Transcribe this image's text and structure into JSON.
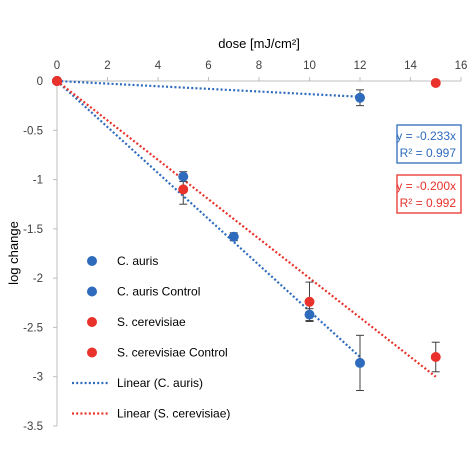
{
  "chart_data": {
    "type": "scatter",
    "xlabel": "dose [mJ/cm²]",
    "ylabel": "log change",
    "xlim": [
      0,
      16
    ],
    "ylim": [
      -3.5,
      0
    ],
    "x_ticks": [
      0,
      2,
      4,
      6,
      8,
      10,
      12,
      14,
      16
    ],
    "y_ticks": [
      0,
      -0.5,
      -1,
      -1.5,
      -2,
      -2.5,
      -3,
      -3.5
    ],
    "x_tick_labels": [
      "0",
      "2",
      "4",
      "6",
      "8",
      "10",
      "12",
      "14",
      "16"
    ],
    "y_tick_labels": [
      "0",
      "-0.5",
      "-1",
      "-1.5",
      "-2",
      "-2.5",
      "-3",
      "-3.5"
    ],
    "x_axis_position": "top",
    "grid": false,
    "series": [
      {
        "name": "C. auris",
        "color": "#2e6bbd",
        "points": [
          {
            "x": 0,
            "y": 0,
            "err": 0
          },
          {
            "x": 5,
            "y": -0.97,
            "err": 0.05
          },
          {
            "x": 7,
            "y": -1.58,
            "err": 0.04
          },
          {
            "x": 10,
            "y": -2.37,
            "err": 0.06
          },
          {
            "x": 12,
            "y": -2.86,
            "err": 0.28
          }
        ]
      },
      {
        "name": "C. auris Control",
        "color": "#2e6bbd",
        "points": [
          {
            "x": 0,
            "y": 0,
            "err": 0
          },
          {
            "x": 12,
            "y": -0.17,
            "err": 0.08
          }
        ]
      },
      {
        "name": "S. cerevisiae",
        "color": "#e8322b",
        "points": [
          {
            "x": 0,
            "y": 0,
            "err": 0
          },
          {
            "x": 5,
            "y": -1.1,
            "err": 0.15
          },
          {
            "x": 10,
            "y": -2.24,
            "err": 0.2
          },
          {
            "x": 15,
            "y": -2.8,
            "err": 0.15
          }
        ]
      },
      {
        "name": "S. cerevisiae Control",
        "color": "#e8322b",
        "points": [
          {
            "x": 0,
            "y": 0,
            "err": 0
          },
          {
            "x": 15,
            "y": -0.02,
            "err": 0
          }
        ]
      }
    ],
    "trendlines": [
      {
        "name": "Linear (C. auris)",
        "color": "#2e6bbd",
        "x": [
          0,
          12
        ],
        "y": [
          0,
          -2.8
        ]
      },
      {
        "name": "Linear (S. cerevisiae)",
        "color": "#e8322b",
        "x": [
          0,
          15
        ],
        "y": [
          0,
          -3.0
        ]
      },
      {
        "color": "#2e6bbd",
        "x": [
          0,
          12
        ],
        "y": [
          0,
          -0.16
        ]
      }
    ],
    "annotations": [
      {
        "lines": [
          "y = -0.233x",
          "R² = 0.997"
        ],
        "color": "#2e6bbd"
      },
      {
        "lines": [
          "y = -0.200x",
          "R² = 0.992"
        ],
        "color": "#e8322b"
      }
    ],
    "legend": {
      "placement": "bottom-left",
      "entries": [
        {
          "label": "C. auris",
          "kind": "marker",
          "color": "#2e6bbd"
        },
        {
          "label": "C. auris Control",
          "kind": "marker",
          "color": "#2e6bbd"
        },
        {
          "label": "S. cerevisiae",
          "kind": "marker",
          "color": "#e8322b"
        },
        {
          "label": "S. cerevisiae Control",
          "kind": "marker",
          "color": "#e8322b"
        },
        {
          "label": "Linear (C. auris)",
          "kind": "line",
          "color": "#2e6bbd"
        },
        {
          "label": "Linear (S. cerevisiae)",
          "kind": "line",
          "color": "#e8322b"
        }
      ]
    }
  }
}
